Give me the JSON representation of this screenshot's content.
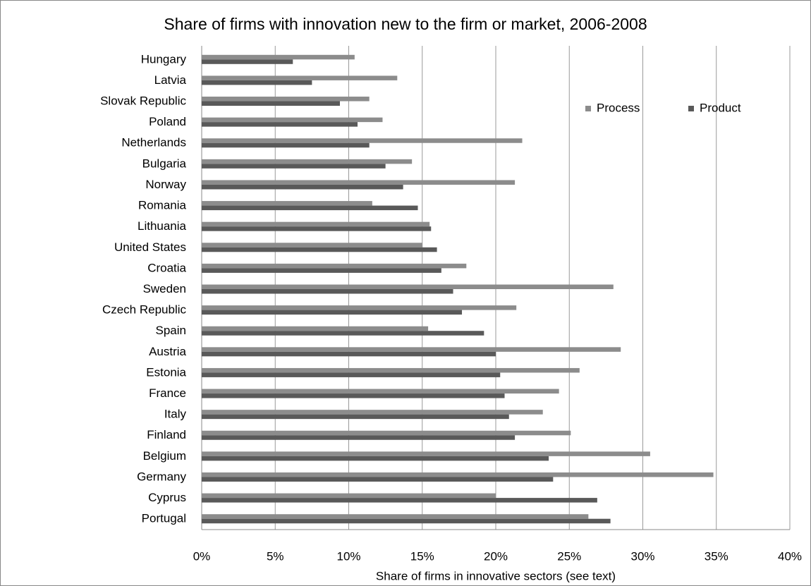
{
  "chart_data": {
    "type": "bar",
    "orientation": "horizontal",
    "title": "Share of firms with innovation new to the firm or market, 2006-2008",
    "x_label": "Share of firms in innovative sectors (see text)",
    "categories": [
      "Hungary",
      "Latvia",
      "Slovak Republic",
      "Poland",
      "Netherlands",
      "Bulgaria",
      "Norway",
      "Romania",
      "Lithuania",
      "United States",
      "Croatia",
      "Sweden",
      "Czech Republic",
      "Spain",
      "Austria",
      "Estonia",
      "France",
      "Italy",
      "Finland",
      "Belgium",
      "Germany",
      "Cyprus",
      "Portugal"
    ],
    "series": [
      {
        "name": "Process",
        "color": "#8c8c8c",
        "values": [
          10.4,
          13.3,
          11.4,
          12.3,
          21.8,
          14.3,
          21.3,
          11.6,
          15.5,
          15.0,
          18.0,
          28.0,
          21.4,
          15.4,
          28.5,
          25.7,
          24.3,
          23.2,
          25.1,
          30.5,
          34.8,
          20.0,
          26.3
        ]
      },
      {
        "name": "Product",
        "color": "#595959",
        "values": [
          6.2,
          7.5,
          9.4,
          10.6,
          11.4,
          12.5,
          13.7,
          14.7,
          15.6,
          16.0,
          16.3,
          17.1,
          17.7,
          19.2,
          20.0,
          20.3,
          20.6,
          20.9,
          21.3,
          23.6,
          23.9,
          26.9,
          27.8
        ]
      }
    ],
    "xlim": [
      0,
      40
    ],
    "xticks": [
      {
        "value": 0,
        "label": "0%"
      },
      {
        "value": 5,
        "label": "5%"
      },
      {
        "value": 10,
        "label": "10%"
      },
      {
        "value": 15,
        "label": "15%"
      },
      {
        "value": 20,
        "label": "20%"
      },
      {
        "value": 25,
        "label": "25%"
      },
      {
        "value": 30,
        "label": "30%"
      },
      {
        "value": 35,
        "label": "35%"
      },
      {
        "value": 40,
        "label": "40%"
      }
    ],
    "grid": true,
    "legend": "top-right"
  }
}
